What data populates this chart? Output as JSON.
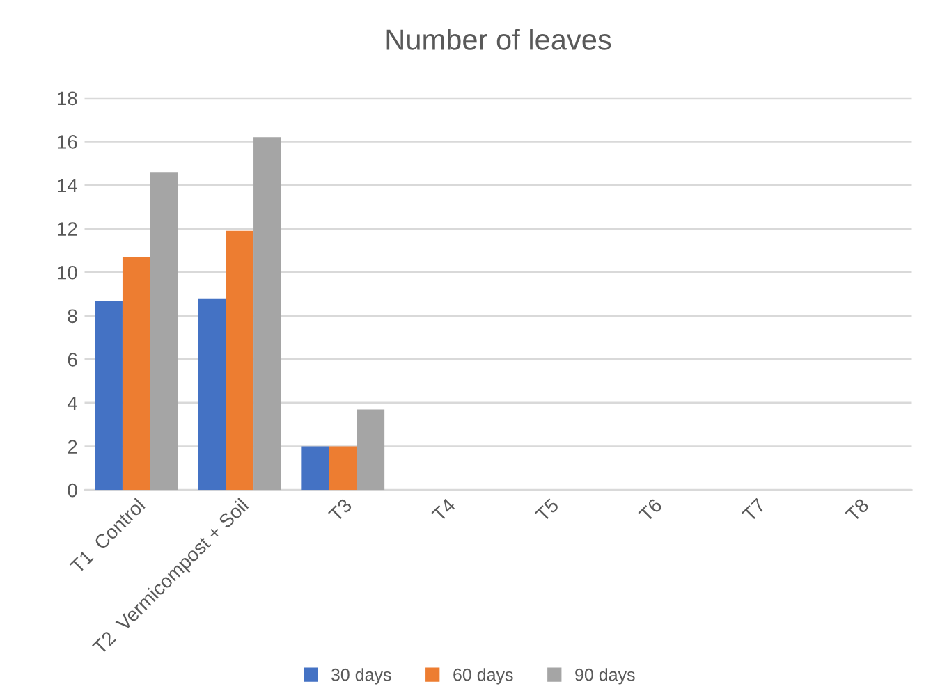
{
  "chart_data": {
    "type": "bar",
    "title": "Number of leaves",
    "categories": [
      "T1  Control",
      "T2  Vermicompost + Soil",
      "T3",
      "T4",
      "T5",
      "T6",
      "T7",
      "T8"
    ],
    "series": [
      {
        "name": "30 days",
        "color": "#4472c4",
        "values": [
          8.7,
          8.8,
          2,
          0,
          0,
          0,
          0,
          0
        ]
      },
      {
        "name": "60 days",
        "color": "#ed7d31",
        "values": [
          10.7,
          11.9,
          2,
          0,
          0,
          0,
          0,
          0
        ]
      },
      {
        "name": "90 days",
        "color": "#a5a5a5",
        "values": [
          14.6,
          16.2,
          3.7,
          0,
          0,
          0,
          0,
          0
        ]
      }
    ],
    "ylim": [
      0,
      18
    ],
    "yticks": [
      0,
      2,
      4,
      6,
      8,
      10,
      12,
      14,
      16,
      18
    ],
    "grid": "y",
    "legend": "bottom"
  }
}
